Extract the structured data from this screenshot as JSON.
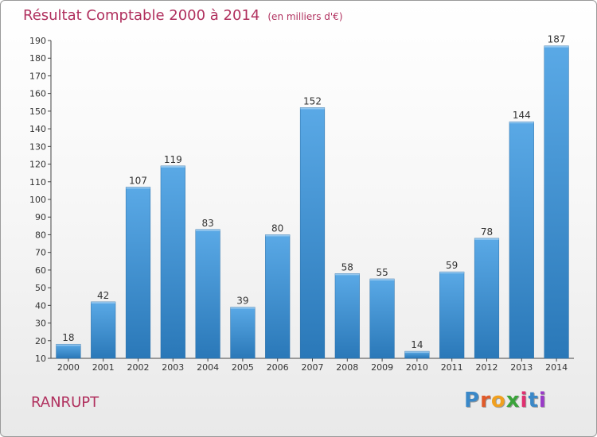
{
  "header": {
    "title": "Résultat Comptable 2000 à 2014",
    "subtitle": "(en milliers d'€)"
  },
  "footer": {
    "commune": "RANRUPT",
    "logo_text": "Proxiti"
  },
  "colors": {
    "title": "#b0305e",
    "bar_top": "#5aa9e6",
    "bar_bottom": "#2a78b8",
    "logo_letters": [
      "#3a88c8",
      "#e05a2a",
      "#f0a020",
      "#3aa33a",
      "#e03070",
      "#3a88c8",
      "#9a3ac8"
    ]
  },
  "chart_data": {
    "type": "bar",
    "categories": [
      "2000",
      "2001",
      "2002",
      "2003",
      "2004",
      "2005",
      "2006",
      "2007",
      "2008",
      "2009",
      "2010",
      "2011",
      "2012",
      "2013",
      "2014"
    ],
    "values": [
      18,
      42,
      107,
      119,
      83,
      39,
      80,
      152,
      58,
      55,
      14,
      59,
      78,
      144,
      187
    ],
    "ylim": [
      10,
      190
    ],
    "yticks": [
      10,
      20,
      30,
      40,
      50,
      60,
      70,
      80,
      90,
      100,
      110,
      120,
      130,
      140,
      150,
      160,
      170,
      180,
      190
    ],
    "xlabel": "",
    "ylabel": "",
    "grid": false,
    "data_labels": true
  }
}
